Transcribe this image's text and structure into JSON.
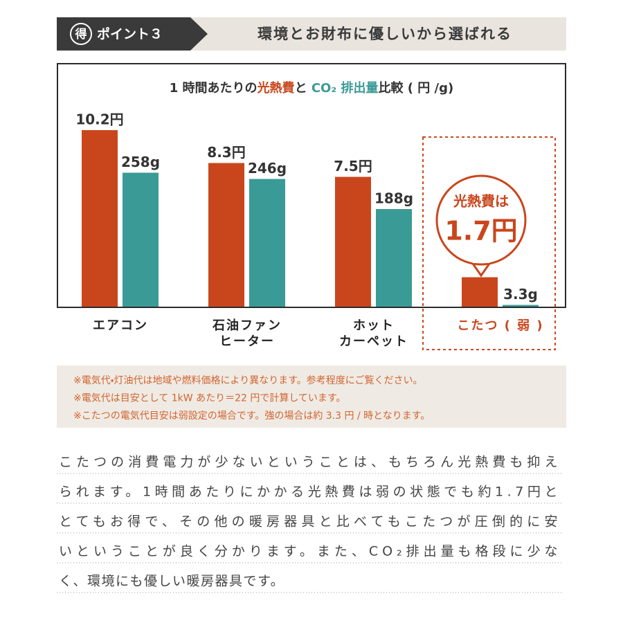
{
  "header": {
    "badge": "得",
    "point": "ポイント３",
    "title": "環境とお財布に優しいから選ばれる"
  },
  "chart_data": {
    "type": "bar",
    "title": [
      "1 時間あたりの",
      "光熱費",
      "と ",
      "CO₂ 排出量",
      "比較 ( 円 /g)"
    ],
    "categories": [
      "エアコン",
      [
        "石油ファン",
        "ヒーター"
      ],
      [
        "ホット",
        "カーペット"
      ],
      "こたつ ( 弱 )"
    ],
    "series": [
      {
        "name": "光熱費",
        "color": "#c9461c",
        "values": [
          10.2,
          8.3,
          7.5,
          1.7
        ],
        "value_labels": [
          "10.2円",
          "8.3円",
          "7.5円",
          null
        ]
      },
      {
        "name": "CO₂ 排出量",
        "color": "#3a9a96",
        "axis": "y2",
        "values": [
          258,
          246,
          188,
          3.3
        ],
        "value_labels": [
          "258g",
          "246g",
          "188g",
          "3.3g"
        ]
      }
    ],
    "ylim": [
      0,
      12
    ],
    "y2lim": [
      0,
      400
    ],
    "highlight": 3,
    "annotations": [
      "光熱費は",
      "1.7円"
    ]
  },
  "notes": [
    "※電気代・灯油代は地域や燃料価格により異なります。参考程度にご覧ください。",
    "※電気代は目安として 1kW あたり＝22 円で計算しています。",
    "※こたつの電気代目安は弱設定の場合です。強の場合は約 3.3 円 / 時となります。"
  ],
  "paragraph": [
    "こたつの消費電力が少ないということは、もちろん光熱費も抑え",
    "られます。1時間あたりにかかる光熱費は弱の状態でも約1.7円と",
    "とてもお得で、その他の暖房器具と比べてもこたつが圧倒的に安",
    "いということが良く分かります。また、CO₂排出量も格段に少な",
    "く、環境にも優しい暖房器具です。"
  ]
}
